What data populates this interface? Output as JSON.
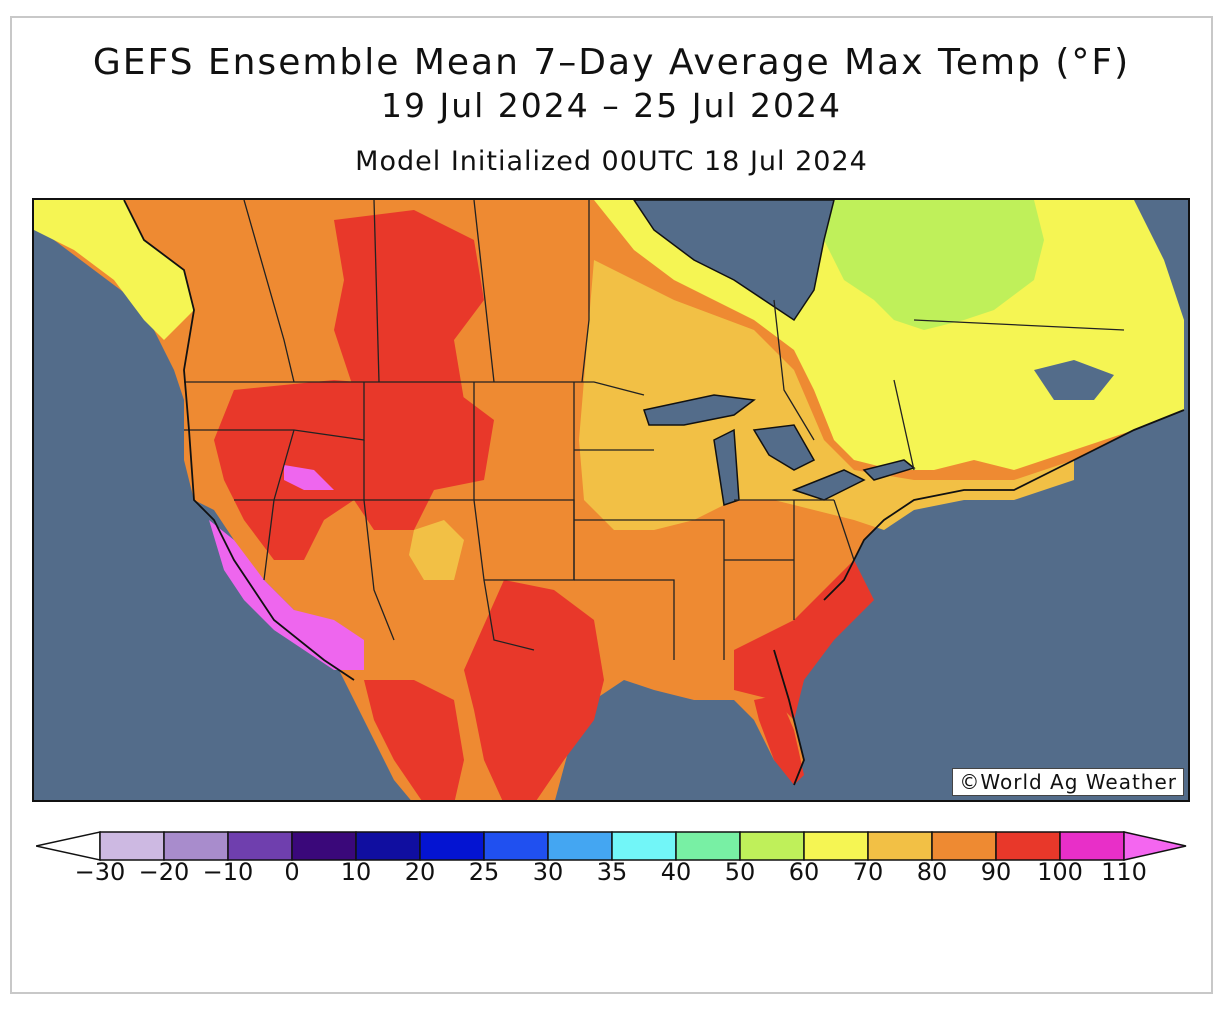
{
  "title_line1": "GEFS Ensemble Mean 7–Day Average Max Temp (°F)",
  "title_line2": "19 Jul 2024 – 25 Jul 2024",
  "title_line3": "Model Initialized 00UTC 18 Jul 2024",
  "credit": "©World Ag Weather",
  "colors": {
    "ocean": "#536c8a",
    "t50": "#bff05a",
    "t60": "#f5f553",
    "t70": "#f2c045",
    "t80": "#ee8a32",
    "t90": "#e8382a",
    "t100": "#e83ccf",
    "t110": "#ee66ee"
  },
  "legend": {
    "labels": [
      "−30",
      "−20",
      "−10",
      "0",
      "10",
      "20",
      "25",
      "30",
      "35",
      "40",
      "50",
      "60",
      "70",
      "80",
      "90",
      "100",
      "110"
    ],
    "colors": [
      "#ffffff",
      "#cdb9e2",
      "#a88ccc",
      "#6f3fae",
      "#3a087a",
      "#100ea0",
      "#0414d2",
      "#2050f0",
      "#44a6f2",
      "#72f6f8",
      "#78f0a4",
      "#bff05a",
      "#f5f553",
      "#f2c045",
      "#ee8a32",
      "#e8382a",
      "#e82fc8",
      "#f466f0"
    ]
  }
}
